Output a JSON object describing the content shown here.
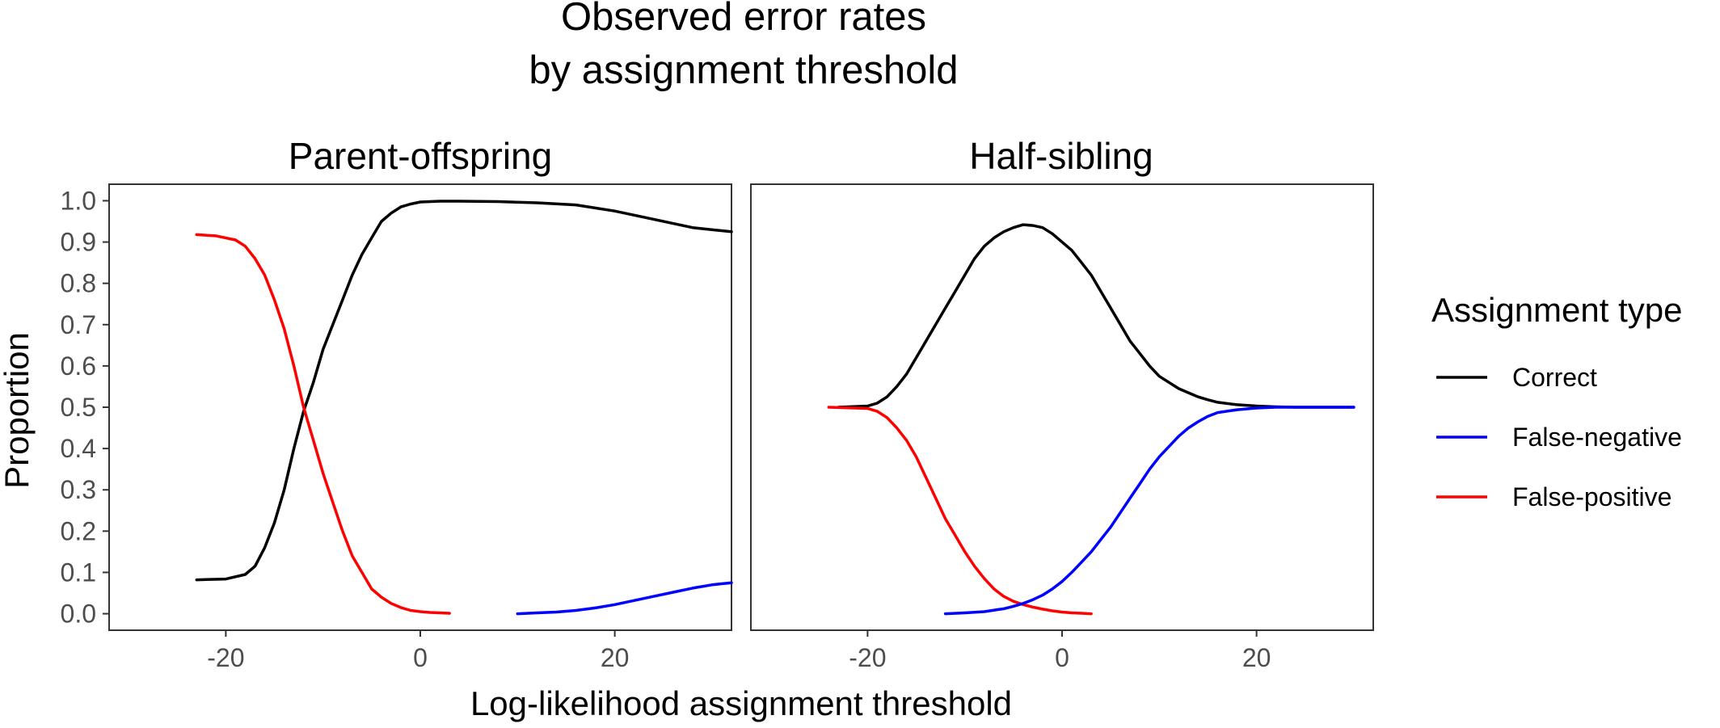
{
  "chart_data": {
    "type": "line",
    "title_line1": "Observed error rates",
    "title_line2": "by assignment threshold",
    "xlabel": "Log-likelihood assignment threshold",
    "ylabel": "Proportion",
    "xlim": [
      -32,
      32
    ],
    "ylim": [
      -0.04,
      1.04
    ],
    "x_ticks": [
      -20,
      0,
      20
    ],
    "y_ticks": [
      0.0,
      0.1,
      0.2,
      0.3,
      0.4,
      0.5,
      0.6,
      0.7,
      0.8,
      0.9,
      1.0
    ],
    "x_tick_labels": [
      "-20",
      "0",
      "20"
    ],
    "y_tick_labels": [
      "0.0",
      "0.1",
      "0.2",
      "0.3",
      "0.4",
      "0.5",
      "0.6",
      "0.7",
      "0.8",
      "0.9",
      "1.0"
    ],
    "grid": false,
    "legend": {
      "title": "Assignment type",
      "position": "right",
      "entries": [
        {
          "label": "Correct",
          "color": "#000000"
        },
        {
          "label": "False-negative",
          "color": "#0000ff"
        },
        {
          "label": "False-positive",
          "color": "#ff0000"
        }
      ]
    },
    "panels": [
      {
        "name": "Parent-offspring",
        "series": [
          {
            "name": "Correct",
            "color": "#000000",
            "x": [
              -23,
              -20,
              -18,
              -17,
              -16,
              -15,
              -14,
              -13,
              -12,
              -11,
              -10,
              -9,
              -8,
              -7,
              -6,
              -5,
              -4,
              -3,
              -2,
              -1,
              0,
              2,
              4,
              8,
              12,
              16,
              20,
              24,
              28,
              32
            ],
            "y": [
              0.082,
              0.084,
              0.095,
              0.115,
              0.16,
              0.22,
              0.3,
              0.4,
              0.49,
              0.56,
              0.64,
              0.7,
              0.76,
              0.82,
              0.87,
              0.91,
              0.95,
              0.97,
              0.985,
              0.992,
              0.997,
              0.999,
              0.999,
              0.998,
              0.995,
              0.99,
              0.975,
              0.955,
              0.935,
              0.925
            ]
          },
          {
            "name": "False-positive",
            "color": "#ff0000",
            "x": [
              -23,
              -21,
              -19,
              -18,
              -17,
              -16,
              -15,
              -14,
              -13,
              -12,
              -11,
              -10,
              -9,
              -8,
              -7,
              -6,
              -5,
              -4,
              -3,
              -2,
              -1,
              0,
              1,
              2,
              3
            ],
            "y": [
              0.918,
              0.915,
              0.905,
              0.89,
              0.86,
              0.82,
              0.76,
              0.69,
              0.6,
              0.5,
              0.42,
              0.34,
              0.27,
              0.2,
              0.14,
              0.1,
              0.06,
              0.04,
              0.025,
              0.015,
              0.008,
              0.005,
              0.003,
              0.002,
              0.001
            ]
          },
          {
            "name": "False-negative",
            "color": "#0000ff",
            "x": [
              10,
              12,
              14,
              16,
              18,
              20,
              22,
              24,
              26,
              28,
              30,
              32
            ],
            "y": [
              0.0,
              0.002,
              0.004,
              0.008,
              0.014,
              0.022,
              0.032,
              0.042,
              0.052,
              0.062,
              0.07,
              0.075
            ]
          }
        ]
      },
      {
        "name": "Half-sibling",
        "series": [
          {
            "name": "Correct",
            "color": "#000000",
            "x": [
              -23,
              -20,
              -19,
              -18,
              -17,
              -16,
              -15,
              -14,
              -13,
              -12,
              -11,
              -10,
              -9,
              -8,
              -7,
              -6,
              -5,
              -4,
              -3,
              -2,
              -1,
              0,
              1,
              2,
              3,
              4,
              5,
              6,
              7,
              8,
              9,
              10,
              11,
              12,
              13,
              14,
              15,
              16,
              18,
              20,
              22,
              24,
              27,
              30
            ],
            "y": [
              0.5,
              0.503,
              0.51,
              0.525,
              0.55,
              0.58,
              0.62,
              0.66,
              0.7,
              0.74,
              0.78,
              0.82,
              0.86,
              0.89,
              0.91,
              0.925,
              0.935,
              0.942,
              0.94,
              0.935,
              0.92,
              0.9,
              0.88,
              0.85,
              0.82,
              0.78,
              0.74,
              0.7,
              0.66,
              0.63,
              0.6,
              0.575,
              0.56,
              0.545,
              0.535,
              0.525,
              0.518,
              0.512,
              0.506,
              0.503,
              0.501,
              0.5,
              0.5,
              0.5
            ]
          },
          {
            "name": "False-positive",
            "color": "#ff0000",
            "x": [
              -24,
              -20,
              -19,
              -18,
              -17,
              -16,
              -15,
              -14,
              -13,
              -12,
              -11,
              -10,
              -9,
              -8,
              -7,
              -6,
              -5,
              -4,
              -3,
              -2,
              -1,
              0,
              1,
              2,
              3
            ],
            "y": [
              0.5,
              0.497,
              0.49,
              0.475,
              0.45,
              0.42,
              0.38,
              0.33,
              0.28,
              0.23,
              0.19,
              0.15,
              0.115,
              0.085,
              0.06,
              0.042,
              0.03,
              0.022,
              0.016,
              0.011,
              0.007,
              0.004,
              0.002,
              0.001,
              0.0
            ]
          },
          {
            "name": "False-negative",
            "color": "#0000ff",
            "x": [
              -12,
              -10,
              -8,
              -6,
              -5,
              -4,
              -3,
              -2,
              -1,
              0,
              1,
              2,
              3,
              4,
              5,
              6,
              7,
              8,
              9,
              10,
              11,
              12,
              13,
              14,
              15,
              16,
              18,
              20,
              22,
              24,
              27,
              30
            ],
            "y": [
              0.0,
              0.002,
              0.005,
              0.012,
              0.018,
              0.025,
              0.034,
              0.045,
              0.06,
              0.078,
              0.1,
              0.125,
              0.15,
              0.18,
              0.21,
              0.245,
              0.28,
              0.315,
              0.35,
              0.38,
              0.405,
              0.43,
              0.45,
              0.465,
              0.478,
              0.487,
              0.494,
              0.498,
              0.5,
              0.5,
              0.5,
              0.5
            ]
          }
        ]
      }
    ]
  }
}
